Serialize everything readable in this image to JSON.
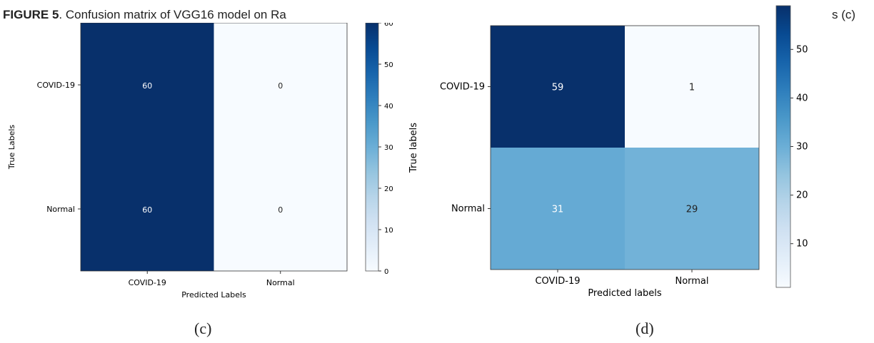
{
  "caption": {
    "figure_label": "FIGURE 5",
    "text_left": ". Confusion matrix of VGG16 model on Ra",
    "text_right": "s (c)"
  },
  "panel_labels": [
    "(c)",
    "(d)"
  ],
  "colors": {
    "high": "#08306b",
    "low": "#f7fbff",
    "mid": "#6baed6",
    "text_light": "#ffffff",
    "text_dark": "#222222"
  },
  "chart_data": [
    {
      "type": "heatmap",
      "panel": "(c)",
      "title": "",
      "xlabel": "Predicted Labels",
      "ylabel": "True Labels",
      "x_categories": [
        "COVID-19",
        "Normal"
      ],
      "y_categories": [
        "COVID-19",
        "Normal"
      ],
      "matrix": [
        [
          60,
          0
        ],
        [
          60,
          0
        ]
      ],
      "colorbar": {
        "min": 0,
        "max": 60,
        "ticks": [
          0,
          10,
          20,
          30,
          40,
          50,
          60
        ]
      },
      "colormap": "Blues"
    },
    {
      "type": "heatmap",
      "panel": "(d)",
      "title": "",
      "xlabel": "Predicted labels",
      "ylabel": "True labels",
      "x_categories": [
        "COVID-19",
        "Normal"
      ],
      "y_categories": [
        "COVID-19",
        "Normal"
      ],
      "matrix": [
        [
          59,
          1
        ],
        [
          31,
          29
        ]
      ],
      "colorbar": {
        "min": 1,
        "max": 59,
        "ticks": [
          10,
          20,
          30,
          40,
          50
        ]
      },
      "colormap": "Blues"
    }
  ]
}
